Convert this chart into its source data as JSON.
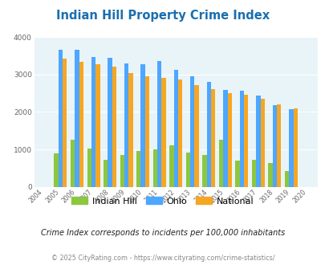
{
  "title": "Indian Hill Property Crime Index",
  "years": [
    2004,
    2005,
    2006,
    2007,
    2008,
    2009,
    2010,
    2011,
    2012,
    2013,
    2014,
    2015,
    2016,
    2017,
    2018,
    2019,
    2020
  ],
  "indian_hill": [
    0,
    900,
    1260,
    1020,
    720,
    840,
    960,
    1000,
    1110,
    910,
    840,
    1260,
    700,
    730,
    640,
    430,
    0
  ],
  "ohio": [
    0,
    3660,
    3660,
    3470,
    3450,
    3300,
    3270,
    3350,
    3120,
    2960,
    2810,
    2590,
    2570,
    2440,
    2180,
    2070,
    0
  ],
  "national": [
    0,
    3430,
    3340,
    3270,
    3210,
    3030,
    2950,
    2900,
    2860,
    2720,
    2620,
    2500,
    2460,
    2360,
    2200,
    2090,
    0
  ],
  "bar_width": 0.26,
  "ylim": [
    0,
    4000
  ],
  "yticks": [
    0,
    1000,
    2000,
    3000,
    4000
  ],
  "color_indian_hill": "#8dc63f",
  "color_ohio": "#4da6ff",
  "color_national": "#f5a623",
  "plot_bg_color": "#e8f4f8",
  "title_color": "#1a6faf",
  "grid_color": "#ffffff",
  "subtitle": "Crime Index corresponds to incidents per 100,000 inhabitants",
  "footer": "© 2025 CityRating.com - https://www.cityrating.com/crime-statistics/",
  "legend_labels": [
    "Indian Hill",
    "Ohio",
    "National"
  ]
}
